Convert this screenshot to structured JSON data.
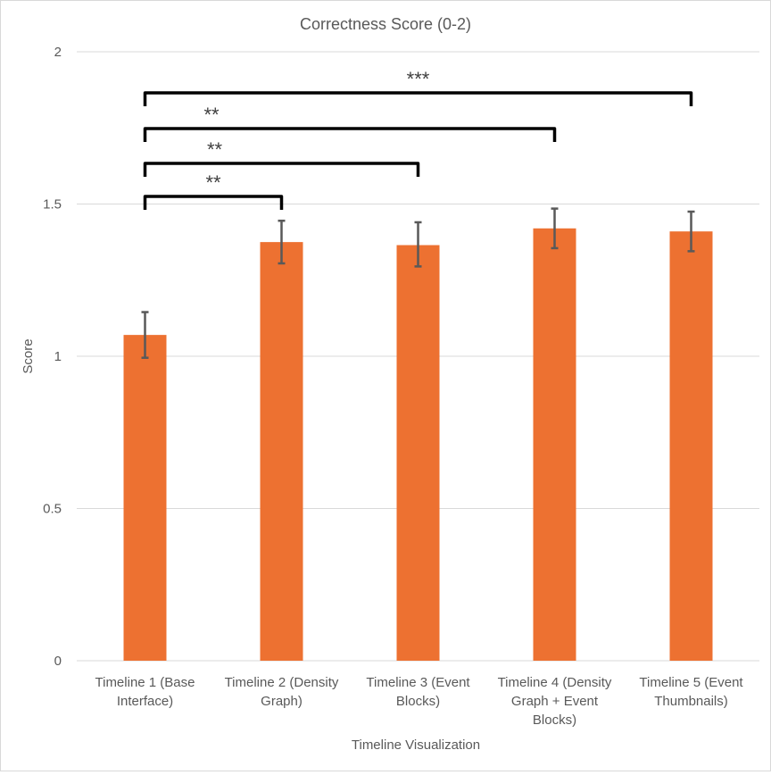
{
  "chart_data": {
    "type": "bar",
    "title": "Correctness Score (0-2)",
    "xlabel": "Timeline Visualization",
    "ylabel": "Score",
    "ylim": [
      0,
      2
    ],
    "yticks": [
      "0",
      "0.5",
      "1",
      "1.5",
      "2"
    ],
    "grid": true,
    "categories": [
      [
        "Timeline 1 (Base",
        "Interface)"
      ],
      [
        "Timeline 2 (Density",
        "Graph)"
      ],
      [
        "Timeline 3 (Event",
        "Blocks)"
      ],
      [
        "Timeline 4 (Density",
        "Graph + Event",
        "Blocks)"
      ],
      [
        "Timeline 5 (Event",
        "Thumbnails)"
      ]
    ],
    "values": [
      1.07,
      1.375,
      1.365,
      1.42,
      1.41
    ],
    "error_low": [
      0.995,
      1.305,
      1.295,
      1.355,
      1.345
    ],
    "error_high": [
      1.145,
      1.445,
      1.44,
      1.485,
      1.475
    ],
    "bar_color": "#ED7131",
    "significance": [
      {
        "from": 0,
        "to": 1,
        "label": "**"
      },
      {
        "from": 0,
        "to": 2,
        "label": "**"
      },
      {
        "from": 0,
        "to": 3,
        "label": "**"
      },
      {
        "from": 0,
        "to": 4,
        "label": "***"
      }
    ]
  }
}
